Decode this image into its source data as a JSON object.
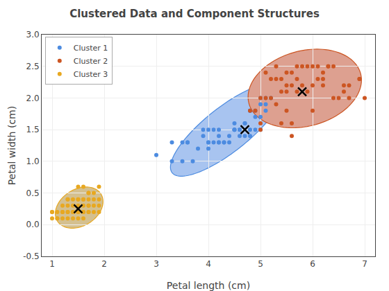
{
  "chart_data": {
    "type": "scatter",
    "title": "Clustered Data and Component Structures",
    "xlabel": "Petal length (cm)",
    "ylabel": "Petal width (cm)",
    "xlim": [
      0.8,
      7.2
    ],
    "ylim": [
      -0.5,
      3.0
    ],
    "xticks": [
      1,
      2,
      3,
      4,
      5,
      6,
      7
    ],
    "yticks": [
      -0.5,
      {
        "value": 0,
        "label": "0.0"
      },
      0.5,
      {
        "value": 1.0,
        "label": "1.0"
      },
      1.5,
      {
        "value": 2.0,
        "label": "2.0"
      },
      2.5,
      {
        "value": 3.0,
        "label": "3.0"
      }
    ],
    "grid": true,
    "legend": "upper left",
    "series": [
      {
        "name": "Cluster 1",
        "color": "#4C8BE0",
        "marker": "circle",
        "x": [
          3.0,
          3.3,
          3.5,
          3.6,
          3.7,
          3.8,
          3.9,
          4.0,
          4.0,
          4.0,
          4.1,
          4.2,
          4.2,
          4.3,
          4.4,
          4.5,
          4.5,
          4.5,
          4.6,
          4.7,
          4.7,
          4.8,
          4.8,
          4.9,
          4.9,
          5.0,
          5.0,
          5.0,
          5.1,
          5.1,
          3.3,
          3.6,
          3.9,
          4.1,
          4.2,
          4.5,
          4.7,
          4.8,
          4.9,
          5.0,
          4.3,
          4.4,
          4.6,
          4.8,
          5.1,
          3.5,
          4.0,
          4.2,
          4.6,
          5.2
        ],
        "y": [
          1.1,
          1.0,
          1.3,
          1.3,
          1.0,
          1.2,
          1.4,
          1.3,
          1.5,
          1.3,
          1.3,
          1.3,
          1.5,
          1.3,
          1.4,
          1.5,
          1.6,
          1.5,
          1.5,
          1.4,
          1.6,
          1.8,
          1.4,
          1.5,
          1.8,
          1.5,
          1.7,
          2.0,
          1.8,
          1.9,
          1.3,
          1.3,
          1.5,
          1.5,
          1.3,
          1.5,
          1.6,
          1.5,
          1.7,
          1.9,
          1.3,
          1.3,
          1.4,
          1.8,
          2.0,
          1.0,
          1.2,
          1.4,
          1.5,
          2.0
        ]
      },
      {
        "name": "Cluster 2",
        "color": "#CC5522",
        "marker": "circle",
        "x": [
          4.9,
          5.0,
          5.1,
          5.2,
          5.3,
          5.4,
          5.4,
          5.5,
          5.5,
          5.6,
          5.6,
          5.7,
          5.7,
          5.8,
          5.9,
          6.0,
          6.1,
          6.2,
          6.3,
          6.4,
          6.7,
          6.9,
          7.0,
          5.6,
          5.6,
          5.1,
          5.3,
          5.5,
          5.8,
          6.0,
          6.1,
          6.2,
          6.4,
          6.5,
          6.6,
          4.8,
          5.0,
          5.2,
          5.3,
          5.5,
          5.7,
          5.9,
          6.0,
          6.2,
          6.3,
          6.6,
          6.7,
          6.9,
          5.4,
          5.0
        ],
        "y": [
          1.8,
          2.0,
          2.0,
          2.0,
          1.9,
          2.1,
          2.3,
          1.8,
          2.1,
          2.2,
          2.4,
          2.1,
          2.3,
          2.2,
          2.5,
          2.5,
          2.3,
          2.3,
          2.5,
          2.0,
          2.0,
          2.3,
          2.0,
          1.4,
          1.6,
          2.4,
          2.3,
          2.2,
          2.5,
          2.2,
          2.5,
          2.2,
          2.5,
          2.0,
          2.1,
          1.8,
          1.6,
          2.3,
          2.5,
          2.4,
          2.5,
          2.1,
          1.8,
          2.4,
          2.5,
          2.2,
          2.2,
          2.3,
          1.6,
          1.5
        ]
      },
      {
        "name": "Cluster 3",
        "color": "#E8A820",
        "marker": "circle",
        "x": [
          1.0,
          1.1,
          1.2,
          1.3,
          1.3,
          1.4,
          1.4,
          1.5,
          1.5,
          1.6,
          1.6,
          1.7,
          1.7,
          1.8,
          1.8,
          1.9,
          1.9,
          1.0,
          1.1,
          1.2,
          1.3,
          1.4,
          1.5,
          1.5,
          1.6,
          1.6,
          1.7,
          1.7,
          1.5,
          1.4,
          1.3,
          1.2,
          1.6,
          1.7,
          1.1,
          1.8,
          1.9,
          1.6,
          1.5,
          1.4,
          1.3,
          1.5,
          1.7,
          1.8,
          1.9,
          1.0,
          1.2,
          1.3,
          1.6,
          1.7
        ],
        "y": [
          0.2,
          0.1,
          0.2,
          0.2,
          0.4,
          0.2,
          0.3,
          0.2,
          0.4,
          0.2,
          0.4,
          0.3,
          0.5,
          0.3,
          0.4,
          0.4,
          0.6,
          0.1,
          0.1,
          0.2,
          0.2,
          0.2,
          0.2,
          0.3,
          0.2,
          0.4,
          0.3,
          0.5,
          0.1,
          0.1,
          0.3,
          0.1,
          0.6,
          0.4,
          0.2,
          0.2,
          0.2,
          0.3,
          0.4,
          0.4,
          0.1,
          0.6,
          0.2,
          0.5,
          0.3,
          0.2,
          0.3,
          0.4,
          0.1,
          0.2
        ]
      }
    ],
    "centroids": {
      "points": [
        [
          4.7,
          1.5
        ],
        [
          5.8,
          2.1
        ],
        [
          1.5,
          0.25
        ]
      ],
      "marker": "x",
      "color": "black"
    },
    "ellipses": [
      {
        "center": [
          1.52,
          0.27
        ],
        "width": 0.95,
        "height": 0.6,
        "angle": 20,
        "fill": "#D4C090",
        "color": "#E8A820"
      },
      {
        "center": [
          4.35,
          1.5
        ],
        "width": 2.5,
        "height": 0.75,
        "angle": 32,
        "fill": "#A8C4F0",
        "color": "#4C8BE0"
      },
      {
        "center": [
          5.85,
          2.15
        ],
        "width": 2.2,
        "height": 1.2,
        "angle": 10,
        "fill": "#DDA090",
        "color": "#CC5522"
      }
    ]
  }
}
